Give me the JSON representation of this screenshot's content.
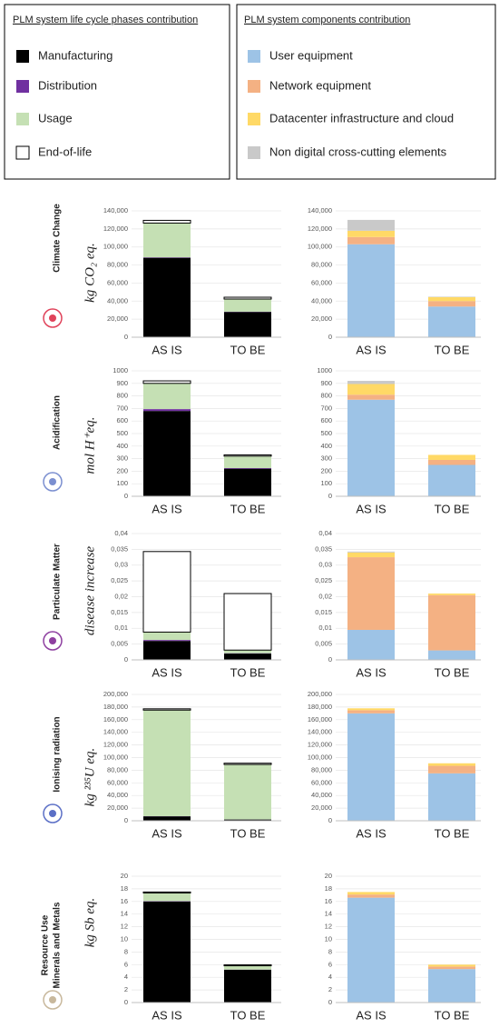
{
  "chart_data": [
    {
      "type": "bar",
      "stacked": true,
      "legend_title": "PLM system life cycle phases contribution",
      "side_label": [
        "Climate Change"
      ],
      "side_label_color": "#e0435a",
      "ylabel": "kg CO₂ eq.",
      "categories": [
        "AS IS",
        "TO BE"
      ],
      "ylim": [
        0,
        140000
      ],
      "yticks": [
        0,
        {
          "value": 20000,
          "label": "20,000"
        },
        {
          "value": 40000,
          "label": "40,000"
        },
        {
          "value": 60000,
          "label": "60,000"
        },
        {
          "value": 80000,
          "label": "80,000"
        },
        {
          "value": 100000,
          "label": "100,000"
        },
        {
          "value": 120000,
          "label": "120,000"
        },
        {
          "value": 140000,
          "label": "140,000"
        }
      ],
      "series": [
        {
          "name": "Manufacturing",
          "color": "#000000",
          "values": [
            88000,
            28000
          ]
        },
        {
          "name": "Distribution",
          "color": "#7030a0",
          "values": [
            500,
            300
          ]
        },
        {
          "name": "Usage",
          "color": "#c5e0b4",
          "values": [
            38000,
            14000
          ]
        },
        {
          "name": "End-of-life",
          "color": "#ffffff",
          "values": [
            3000,
            2000
          ]
        }
      ]
    },
    {
      "type": "bar",
      "stacked": true,
      "legend_title": "PLM system components contribution",
      "categories": [
        "AS IS",
        "TO BE"
      ],
      "ylim": [
        0,
        140000
      ],
      "yticks": [
        0,
        {
          "value": 20000,
          "label": "20,000"
        },
        {
          "value": 40000,
          "label": "40,000"
        },
        {
          "value": 60000,
          "label": "60,000"
        },
        {
          "value": 80000,
          "label": "80,000"
        },
        {
          "value": 100000,
          "label": "100,000"
        },
        {
          "value": 120000,
          "label": "120,000"
        },
        {
          "value": 140000,
          "label": "140,000"
        }
      ],
      "series": [
        {
          "name": "User equipment",
          "color": "#9dc3e6",
          "values": [
            103000,
            34000
          ]
        },
        {
          "name": "Network equipment",
          "color": "#f4b183",
          "values": [
            8000,
            6000
          ]
        },
        {
          "name": "Datacenter infrastructure and cloud",
          "color": "#ffd966",
          "values": [
            7000,
            4500
          ]
        },
        {
          "name": "Non digital cross-cutting elements",
          "color": "#c9c9c9",
          "values": [
            12000,
            500
          ]
        }
      ]
    },
    {
      "type": "bar",
      "stacked": true,
      "side_label": [
        "Acidification"
      ],
      "side_label_color": "#7b8fd0",
      "ylabel": "mol H⁺eq.",
      "categories": [
        "AS IS",
        "TO BE"
      ],
      "ylim": [
        0,
        1000
      ],
      "yticks": [
        0,
        100,
        200,
        300,
        400,
        500,
        600,
        700,
        800,
        900,
        1000
      ],
      "series": [
        {
          "color": "#000000",
          "values": [
            680,
            220
          ]
        },
        {
          "color": "#7030a0",
          "values": [
            15,
            5
          ]
        },
        {
          "color": "#c5e0b4",
          "values": [
            205,
            95
          ]
        },
        {
          "color": "#ffffff",
          "values": [
            20,
            10
          ]
        }
      ]
    },
    {
      "type": "bar",
      "stacked": true,
      "categories": [
        "AS IS",
        "TO BE"
      ],
      "ylim": [
        0,
        1000
      ],
      "yticks": [
        0,
        100,
        200,
        300,
        400,
        500,
        600,
        700,
        800,
        900,
        1000
      ],
      "series": [
        {
          "color": "#9dc3e6",
          "values": [
            770,
            250
          ]
        },
        {
          "color": "#f4b183",
          "values": [
            40,
            40
          ]
        },
        {
          "color": "#ffd966",
          "values": [
            85,
            40
          ]
        },
        {
          "color": "#c9c9c9",
          "values": [
            25,
            0
          ]
        }
      ]
    },
    {
      "type": "bar",
      "stacked": true,
      "side_label": [
        "Particulate Matter"
      ],
      "side_label_color": "#8e3fa0",
      "ylabel": "disease increase",
      "categories": [
        "AS IS",
        "TO BE"
      ],
      "ylim": [
        0,
        0.04
      ],
      "yticks": [
        0,
        {
          "value": 0.005,
          "label": "0,005"
        },
        {
          "value": 0.01,
          "label": "0,01"
        },
        {
          "value": 0.015,
          "label": "0,015"
        },
        {
          "value": 0.02,
          "label": "0,02"
        },
        {
          "value": 0.025,
          "label": "0,025"
        },
        {
          "value": 0.03,
          "label": "0,03"
        },
        {
          "value": 0.035,
          "label": "0,035"
        },
        {
          "value": 0.04,
          "label": "0,04"
        }
      ],
      "series": [
        {
          "color": "#000000",
          "values": [
            0.006,
            0.002
          ]
        },
        {
          "color": "#7030a0",
          "values": [
            0.0003,
            0.0001
          ]
        },
        {
          "color": "#c5e0b4",
          "values": [
            0.0025,
            0.001
          ]
        },
        {
          "color": "#ffffff",
          "values": [
            0.0255,
            0.0179
          ]
        }
      ]
    },
    {
      "type": "bar",
      "stacked": true,
      "categories": [
        "AS IS",
        "TO BE"
      ],
      "ylim": [
        0,
        0.04
      ],
      "yticks": [
        0,
        {
          "value": 0.005,
          "label": "0,005"
        },
        {
          "value": 0.01,
          "label": "0,01"
        },
        {
          "value": 0.015,
          "label": "0,015"
        },
        {
          "value": 0.02,
          "label": "0,02"
        },
        {
          "value": 0.025,
          "label": "0,025"
        },
        {
          "value": 0.03,
          "label": "0,03"
        },
        {
          "value": 0.035,
          "label": "0,035"
        },
        {
          "value": 0.04,
          "label": "0,04"
        }
      ],
      "series": [
        {
          "color": "#9dc3e6",
          "values": [
            0.0095,
            0.003
          ]
        },
        {
          "color": "#f4b183",
          "values": [
            0.023,
            0.0175
          ]
        },
        {
          "color": "#ffd966",
          "values": [
            0.0015,
            0.0005
          ]
        },
        {
          "color": "#c9c9c9",
          "values": [
            0.0003,
            0
          ]
        }
      ]
    },
    {
      "type": "bar",
      "stacked": true,
      "side_label": [
        "Ionising radiation"
      ],
      "side_label_color": "#5b6fc6",
      "ylabel": "kg ²³⁵U eq.",
      "categories": [
        "AS IS",
        "TO BE"
      ],
      "ylim": [
        0,
        200000
      ],
      "yticks": [
        0,
        {
          "value": 20000,
          "label": "20,000"
        },
        {
          "value": 40000,
          "label": "40,000"
        },
        {
          "value": 60000,
          "label": "60,000"
        },
        {
          "value": 80000,
          "label": "80,000"
        },
        {
          "value": 100000,
          "label": "100,000"
        },
        {
          "value": 120000,
          "label": "120,000"
        },
        {
          "value": 140000,
          "label": "140,000"
        },
        {
          "value": 160000,
          "label": "160,000"
        },
        {
          "value": 180000,
          "label": "180,000"
        },
        {
          "value": 200000,
          "label": "200,000"
        }
      ],
      "series": [
        {
          "color": "#000000",
          "values": [
            7000,
            2000
          ]
        },
        {
          "color": "#7030a0",
          "values": [
            200,
            100
          ]
        },
        {
          "color": "#c5e0b4",
          "values": [
            168000,
            87000
          ]
        },
        {
          "color": "#ffffff",
          "values": [
            2000,
            2000
          ]
        }
      ]
    },
    {
      "type": "bar",
      "stacked": true,
      "categories": [
        "AS IS",
        "TO BE"
      ],
      "ylim": [
        0,
        200000
      ],
      "yticks": [
        0,
        {
          "value": 20000,
          "label": "20,000"
        },
        {
          "value": 40000,
          "label": "40,000"
        },
        {
          "value": 60000,
          "label": "60,000"
        },
        {
          "value": 80000,
          "label": "80,000"
        },
        {
          "value": 100000,
          "label": "100,000"
        },
        {
          "value": 120000,
          "label": "120,000"
        },
        {
          "value": 140000,
          "label": "140,000"
        },
        {
          "value": 160000,
          "label": "160,000"
        },
        {
          "value": 180000,
          "label": "180,000"
        },
        {
          "value": 200000,
          "label": "200,000"
        }
      ],
      "series": [
        {
          "color": "#9dc3e6",
          "values": [
            170000,
            75000
          ]
        },
        {
          "color": "#f4b183",
          "values": [
            5000,
            12000
          ]
        },
        {
          "color": "#ffd966",
          "values": [
            3000,
            4000
          ]
        },
        {
          "color": "#c9c9c9",
          "values": [
            0,
            0
          ]
        }
      ]
    },
    {
      "type": "bar",
      "stacked": true,
      "side_label": [
        "Resource Use",
        "Minerals and Metals"
      ],
      "side_label_color": "#c8b89c",
      "ylabel": "kg Sb eq.",
      "categories": [
        "AS IS",
        "TO BE"
      ],
      "ylim": [
        0,
        20
      ],
      "yticks": [
        0,
        2,
        4,
        6,
        8,
        10,
        12,
        14,
        16,
        18,
        20
      ],
      "series": [
        {
          "color": "#000000",
          "values": [
            16,
            5.2
          ]
        },
        {
          "color": "#7030a0",
          "values": [
            0.05,
            0.02
          ]
        },
        {
          "color": "#c5e0b4",
          "values": [
            1.3,
            0.6
          ]
        },
        {
          "color": "#ffffff",
          "values": [
            0.15,
            0.15
          ]
        }
      ]
    },
    {
      "type": "bar",
      "stacked": true,
      "categories": [
        "AS IS",
        "TO BE"
      ],
      "ylim": [
        0,
        20
      ],
      "yticks": [
        0,
        2,
        4,
        6,
        8,
        10,
        12,
        14,
        16,
        18,
        20
      ],
      "series": [
        {
          "color": "#9dc3e6",
          "values": [
            16.6,
            5.3
          ]
        },
        {
          "color": "#f4b183",
          "values": [
            0.5,
            0.4
          ]
        },
        {
          "color": "#ffd966",
          "values": [
            0.4,
            0.3
          ]
        },
        {
          "color": "#c9c9c9",
          "values": [
            0,
            0
          ]
        }
      ]
    }
  ]
}
